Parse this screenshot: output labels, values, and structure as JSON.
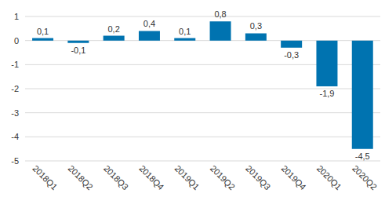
{
  "chart_data": {
    "type": "bar",
    "categories": [
      "2018Q1",
      "2018Q2",
      "2018Q3",
      "2018Q4",
      "2019Q1",
      "2019Q2",
      "2019Q3",
      "2019Q4",
      "2020Q1",
      "2020Q2"
    ],
    "values": [
      0.1,
      -0.1,
      0.2,
      0.4,
      0.1,
      0.8,
      0.3,
      -0.3,
      -1.9,
      -4.5
    ],
    "value_labels": [
      "0,1",
      "-0,1",
      "0,2",
      "0,4",
      "0,1",
      "0,8",
      "0,3",
      "-0,3",
      "-1,9",
      "-4,5"
    ],
    "color": "#0073b0",
    "ylim": [
      -5,
      1
    ],
    "yticks": [
      -5,
      -4,
      -3,
      -2,
      -1,
      0,
      1
    ],
    "grid": true,
    "data_labels": true
  }
}
